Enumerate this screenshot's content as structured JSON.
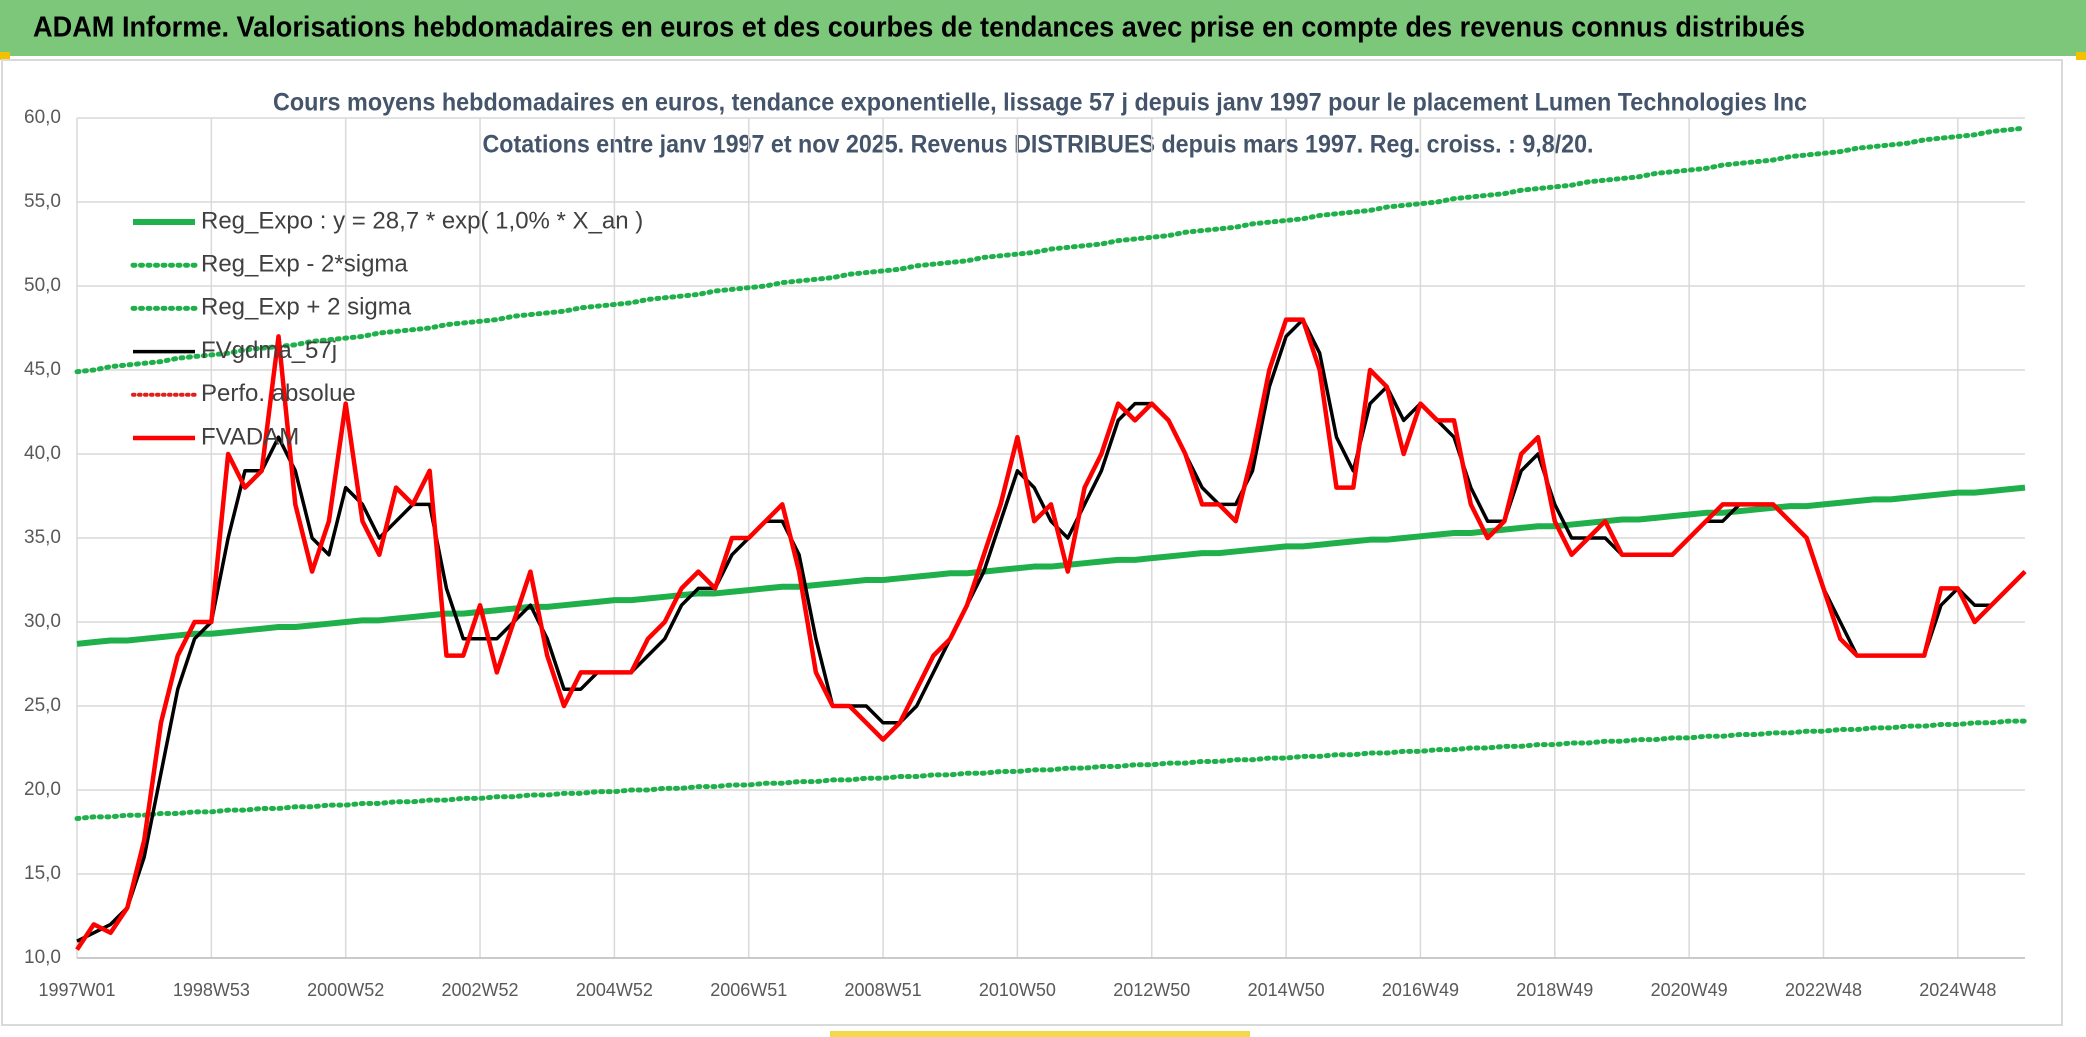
{
  "header": {
    "title": "ADAM Informe. Valorisations hebdomadaires en euros et des courbes de tendances avec prise en compte des revenus connus distribués"
  },
  "chart_data": {
    "type": "line",
    "title": "Cours moyens hebdomadaires en euros, tendance exponentielle, lissage 57 j depuis janv 1997 pour le placement Lumen Technologies Inc",
    "subtitle": "Cotations entre janv 1997 et nov 2025. Revenus DISTRIBUES depuis mars 1997. Reg. croiss. : 9,8/20.",
    "categories": [
      "1997W01",
      null,
      null,
      null,
      null,
      null,
      null,
      null,
      "1998W53",
      null,
      null,
      null,
      null,
      null,
      null,
      null,
      "2000W52",
      null,
      null,
      null,
      null,
      null,
      null,
      null,
      "2002W52",
      null,
      null,
      null,
      null,
      null,
      null,
      null,
      "2004W52",
      null,
      null,
      null,
      null,
      null,
      null,
      null,
      "2006W51",
      null,
      null,
      null,
      null,
      null,
      null,
      null,
      "2008W51",
      null,
      null,
      null,
      null,
      null,
      null,
      null,
      "2010W50",
      null,
      null,
      null,
      null,
      null,
      null,
      null,
      "2012W50",
      null,
      null,
      null,
      null,
      null,
      null,
      null,
      "2014W50",
      null,
      null,
      null,
      null,
      null,
      null,
      null,
      "2016W49",
      null,
      null,
      null,
      null,
      null,
      null,
      null,
      "2018W49",
      null,
      null,
      null,
      null,
      null,
      null,
      null,
      "2020W49",
      null,
      null,
      null,
      null,
      null,
      null,
      null,
      "2022W48",
      null,
      null,
      null,
      null,
      null,
      null,
      null,
      "2024W48",
      null,
      null,
      null,
      null
    ],
    "ylim": [
      10,
      60
    ],
    "yticks": [
      {
        "value": 10,
        "label": "10,0"
      },
      {
        "value": 15,
        "label": "15,0"
      },
      {
        "value": 20,
        "label": "20,0"
      },
      {
        "value": 25,
        "label": "25,0"
      },
      {
        "value": 30,
        "label": "30,0"
      },
      {
        "value": 35,
        "label": "35,0"
      },
      {
        "value": 40,
        "label": "40,0"
      },
      {
        "value": 45,
        "label": "45,0"
      },
      {
        "value": 50,
        "label": "50,0"
      },
      {
        "value": 55,
        "label": "55,0"
      },
      {
        "value": 60,
        "label": "60,0"
      }
    ],
    "grid": true,
    "legend": "top-left",
    "series": [
      {
        "name": "Reg_Expo : y = 28,7 * exp( 1,0% *  X_an )",
        "color": "#1fb04b",
        "line_style": "solid",
        "linewidth": 6,
        "values": [
          28.7,
          28.8,
          28.9,
          28.9,
          29.0,
          29.1,
          29.2,
          29.3,
          29.3,
          29.4,
          29.5,
          29.6,
          29.7,
          29.7,
          29.8,
          29.9,
          30.0,
          30.1,
          30.1,
          30.2,
          30.3,
          30.4,
          30.5,
          30.5,
          30.6,
          30.7,
          30.8,
          30.9,
          30.9,
          31.0,
          31.1,
          31.2,
          31.3,
          31.3,
          31.4,
          31.5,
          31.6,
          31.7,
          31.7,
          31.8,
          31.9,
          32.0,
          32.1,
          32.1,
          32.2,
          32.3,
          32.4,
          32.5,
          32.5,
          32.6,
          32.7,
          32.8,
          32.9,
          32.9,
          33.0,
          33.1,
          33.2,
          33.3,
          33.3,
          33.4,
          33.5,
          33.6,
          33.7,
          33.7,
          33.8,
          33.9,
          34.0,
          34.1,
          34.1,
          34.2,
          34.3,
          34.4,
          34.5,
          34.5,
          34.6,
          34.7,
          34.8,
          34.9,
          34.9,
          35.0,
          35.1,
          35.2,
          35.3,
          35.3,
          35.4,
          35.5,
          35.6,
          35.7,
          35.7,
          35.8,
          35.9,
          36.0,
          36.1,
          36.1,
          36.2,
          36.3,
          36.4,
          36.5,
          36.5,
          36.6,
          36.7,
          36.8,
          36.9,
          36.9,
          37.0,
          37.1,
          37.2,
          37.3,
          37.3,
          37.4,
          37.5,
          37.6,
          37.7,
          37.7,
          37.8,
          37.9,
          38.0
        ]
      },
      {
        "name": "Reg_Exp - 2*sigma",
        "color": "#1fb04b",
        "line_style": "dotted",
        "linewidth": 5,
        "values": [
          18.3,
          18.4,
          18.4,
          18.5,
          18.5,
          18.6,
          18.6,
          18.7,
          18.7,
          18.8,
          18.8,
          18.9,
          18.9,
          19.0,
          19.0,
          19.1,
          19.1,
          19.2,
          19.2,
          19.3,
          19.3,
          19.4,
          19.4,
          19.5,
          19.5,
          19.6,
          19.6,
          19.7,
          19.7,
          19.8,
          19.8,
          19.9,
          19.9,
          20.0,
          20.0,
          20.1,
          20.1,
          20.2,
          20.2,
          20.3,
          20.3,
          20.4,
          20.4,
          20.5,
          20.5,
          20.6,
          20.6,
          20.7,
          20.7,
          20.8,
          20.8,
          20.9,
          20.9,
          21.0,
          21.0,
          21.1,
          21.1,
          21.2,
          21.2,
          21.3,
          21.3,
          21.4,
          21.4,
          21.5,
          21.5,
          21.6,
          21.6,
          21.7,
          21.7,
          21.8,
          21.8,
          21.9,
          21.9,
          22.0,
          22.0,
          22.1,
          22.1,
          22.2,
          22.2,
          22.3,
          22.3,
          22.4,
          22.4,
          22.5,
          22.5,
          22.6,
          22.6,
          22.7,
          22.7,
          22.8,
          22.8,
          22.9,
          22.9,
          23.0,
          23.0,
          23.1,
          23.1,
          23.2,
          23.2,
          23.3,
          23.3,
          23.4,
          23.4,
          23.5,
          23.5,
          23.6,
          23.6,
          23.7,
          23.7,
          23.8,
          23.8,
          23.9,
          23.9,
          24.0,
          24.0,
          24.1,
          24.1
        ]
      },
      {
        "name": "Reg_Exp + 2 sigma",
        "color": "#1fb04b",
        "line_style": "dotted",
        "linewidth": 5,
        "values": [
          44.9,
          45.0,
          45.2,
          45.3,
          45.4,
          45.5,
          45.7,
          45.8,
          45.9,
          46.0,
          46.2,
          46.3,
          46.4,
          46.5,
          46.7,
          46.8,
          46.9,
          47.0,
          47.2,
          47.3,
          47.4,
          47.5,
          47.7,
          47.8,
          47.9,
          48.0,
          48.2,
          48.3,
          48.4,
          48.5,
          48.7,
          48.8,
          48.9,
          49.0,
          49.2,
          49.3,
          49.4,
          49.5,
          49.7,
          49.8,
          49.9,
          50.0,
          50.2,
          50.3,
          50.4,
          50.5,
          50.7,
          50.8,
          50.9,
          51.0,
          51.2,
          51.3,
          51.4,
          51.5,
          51.7,
          51.8,
          51.9,
          52.0,
          52.2,
          52.3,
          52.4,
          52.5,
          52.7,
          52.8,
          52.9,
          53.0,
          53.2,
          53.3,
          53.4,
          53.5,
          53.7,
          53.8,
          53.9,
          54.0,
          54.2,
          54.3,
          54.4,
          54.5,
          54.7,
          54.8,
          54.9,
          55.0,
          55.2,
          55.3,
          55.4,
          55.5,
          55.7,
          55.8,
          55.9,
          56.0,
          56.2,
          56.3,
          56.4,
          56.5,
          56.7,
          56.8,
          56.9,
          57.0,
          57.2,
          57.3,
          57.4,
          57.5,
          57.7,
          57.8,
          57.9,
          58.0,
          58.2,
          58.3,
          58.4,
          58.5,
          58.7,
          58.8,
          58.9,
          59.0,
          59.2,
          59.3,
          59.4
        ]
      },
      {
        "name": "FVgdma_57j",
        "color": "#000000",
        "line_style": "solid",
        "linewidth": 3.5,
        "values": [
          11,
          11.5,
          12,
          13,
          16,
          21,
          26,
          29,
          30,
          35,
          39,
          39,
          41,
          39,
          35,
          34,
          38,
          37,
          35,
          36,
          37,
          37,
          32,
          29,
          29,
          29,
          30,
          31,
          29,
          26,
          26,
          27,
          27,
          27,
          28,
          29,
          31,
          32,
          32,
          34,
          35,
          36,
          36,
          34,
          29,
          25,
          25,
          25,
          24,
          24,
          25,
          27,
          29,
          31,
          33,
          36,
          39,
          38,
          36,
          35,
          37,
          39,
          42,
          43,
          43,
          42,
          40,
          38,
          37,
          37,
          39,
          44,
          47,
          48,
          46,
          41,
          39,
          43,
          44,
          42,
          43,
          42,
          41,
          38,
          36,
          36,
          39,
          40,
          37,
          35,
          35,
          35,
          34,
          34,
          34,
          34,
          35,
          36,
          36,
          37,
          37,
          37,
          36,
          35,
          32,
          30,
          28,
          28,
          28,
          28,
          28,
          31,
          32,
          31,
          31,
          32,
          33
        ]
      },
      {
        "name": "Perfo. absolue",
        "color": "#e0201b",
        "line_style": "dotted",
        "linewidth": 4,
        "values": [
          null,
          null,
          null,
          null,
          null,
          null,
          null,
          null,
          null,
          null,
          null,
          null,
          null,
          null,
          null,
          null,
          null,
          null,
          null,
          null,
          null,
          null,
          null,
          null,
          null,
          null,
          null,
          null,
          null,
          null,
          null,
          null,
          null,
          null,
          null,
          null,
          null,
          null,
          null,
          null,
          null,
          null,
          null,
          null,
          null,
          null,
          null,
          null,
          null,
          null,
          null,
          null,
          null,
          null,
          null,
          null,
          null,
          null,
          null,
          null,
          null,
          null,
          null,
          null,
          null,
          null,
          null,
          null,
          null,
          null,
          null,
          null,
          null,
          null,
          null,
          null,
          null,
          null,
          null,
          null,
          null,
          null,
          null,
          null,
          null,
          null,
          null,
          null,
          null,
          null,
          null,
          null,
          null,
          null,
          null,
          null,
          null,
          null,
          null,
          null,
          null,
          null,
          null,
          null,
          null,
          null,
          null,
          null,
          null,
          null,
          null,
          null,
          null,
          null,
          null,
          null,
          null
        ]
      },
      {
        "name": "FVADAM",
        "color": "#ff0000",
        "line_style": "solid",
        "linewidth": 4.5,
        "values": [
          10.5,
          12,
          11.5,
          13,
          17,
          24,
          28,
          30,
          30,
          40,
          38,
          39,
          47,
          37,
          33,
          36,
          43,
          36,
          34,
          38,
          37,
          39,
          28,
          28,
          31,
          27,
          30,
          33,
          28,
          25,
          27,
          27,
          27,
          27,
          29,
          30,
          32,
          33,
          32,
          35,
          35,
          36,
          37,
          33,
          27,
          25,
          25,
          24,
          23,
          24,
          26,
          28,
          29,
          31,
          34,
          37,
          41,
          36,
          37,
          33,
          38,
          40,
          43,
          42,
          43,
          42,
          40,
          37,
          37,
          36,
          40,
          45,
          48,
          48,
          45,
          38,
          38,
          45,
          44,
          40,
          43,
          42,
          42,
          37,
          35,
          36,
          40,
          41,
          36,
          34,
          35,
          36,
          34,
          34,
          34,
          34,
          35,
          36,
          37,
          37,
          37,
          37,
          36,
          35,
          32,
          29,
          28,
          28,
          28,
          28,
          28,
          32,
          32,
          30,
          31,
          32,
          33
        ]
      }
    ]
  }
}
